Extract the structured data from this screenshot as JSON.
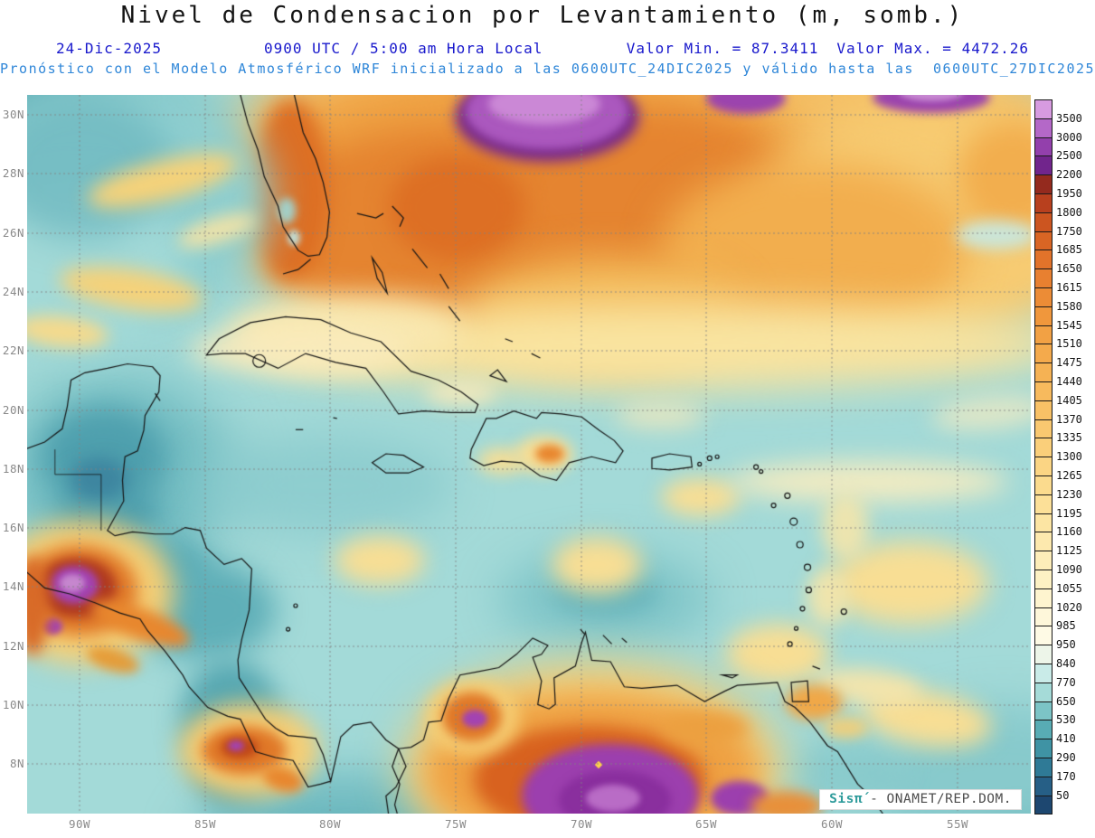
{
  "title": "Nivel de Condensacion por Levantamiento (m, somb.)",
  "header": {
    "date": "24-Dic-2025",
    "time": "0900 UTC / 5:00 am Hora Local",
    "min_label": "Valor Min. = 87.3411",
    "max_label": "Valor Max. = 4472.26",
    "forecast_line": "Pronóstico con el Modelo Atmosférico WRF inicializado a las 0600UTC_24DIC2025 y válido hasta las  0600UTC_27DIC2025"
  },
  "map": {
    "lat_labels": [
      "30N",
      "28N",
      "26N",
      "24N",
      "22N",
      "20N",
      "18N",
      "16N",
      "14N",
      "12N",
      "10N",
      "8N"
    ],
    "lon_labels": [
      "90W",
      "85W",
      "80W",
      "75W",
      "70W",
      "65W",
      "60W",
      "55W"
    ]
  },
  "colorbar": {
    "tick_labels": [
      "3500",
      "3000",
      "2500",
      "2200",
      "1950",
      "1800",
      "1750",
      "1685",
      "1650",
      "1615",
      "1580",
      "1545",
      "1510",
      "1475",
      "1440",
      "1405",
      "1370",
      "1335",
      "1300",
      "1265",
      "1230",
      "1195",
      "1160",
      "1125",
      "1090",
      "1055",
      "1020",
      "985",
      "950",
      "840",
      "770",
      "650",
      "530",
      "410",
      "290",
      "170",
      "50"
    ],
    "colors": [
      "#D79BE0",
      "#B468C8",
      "#9340AC",
      "#71258C",
      "#942A1E",
      "#B8401E",
      "#CC5520",
      "#D96524",
      "#E2732A",
      "#E88030",
      "#EC8C36",
      "#F0973C",
      "#F2A144",
      "#F4AA4C",
      "#F5B254",
      "#F7BA5D",
      "#F8C166",
      "#F9C870",
      "#FACF7A",
      "#FBD584",
      "#FBDB8E",
      "#FCE098",
      "#FCE5A3",
      "#FDE9AE",
      "#FDEDB9",
      "#FDF1C4",
      "#FEF4CF",
      "#FEF7DA",
      "#FEFAE5",
      "#EDF5E9",
      "#C9EBE8",
      "#A5DBD8",
      "#7CC4C6",
      "#58ACB4",
      "#3F93A4",
      "#2F7A96",
      "#265F86",
      "#1D4770"
    ]
  },
  "attribution": {
    "brand": "Sisπ́",
    "text": "- ONAMET/REP.DOM."
  },
  "chart_data": {
    "type": "heatmap",
    "title": "Nivel de Condensacion por Levantamiento (m, somb.)",
    "units": "m",
    "value_min": 87.3411,
    "value_max": 4472.26,
    "lat_range": [
      "8N",
      "30N"
    ],
    "lon_range": [
      "90W",
      "55W"
    ],
    "colorbar_ticks": [
      3500,
      3000,
      2500,
      2200,
      1950,
      1800,
      1750,
      1685,
      1650,
      1615,
      1580,
      1545,
      1510,
      1475,
      1440,
      1405,
      1370,
      1335,
      1300,
      1265,
      1230,
      1195,
      1160,
      1125,
      1090,
      1055,
      1020,
      985,
      950,
      840,
      770,
      650,
      530,
      410,
      290,
      170,
      50
    ],
    "legend_position": "right"
  },
  "colors": {
    "header_blue": "#1818CC",
    "forecast_blue": "#2E86D8",
    "axis_gray": "#8a8a8a"
  }
}
